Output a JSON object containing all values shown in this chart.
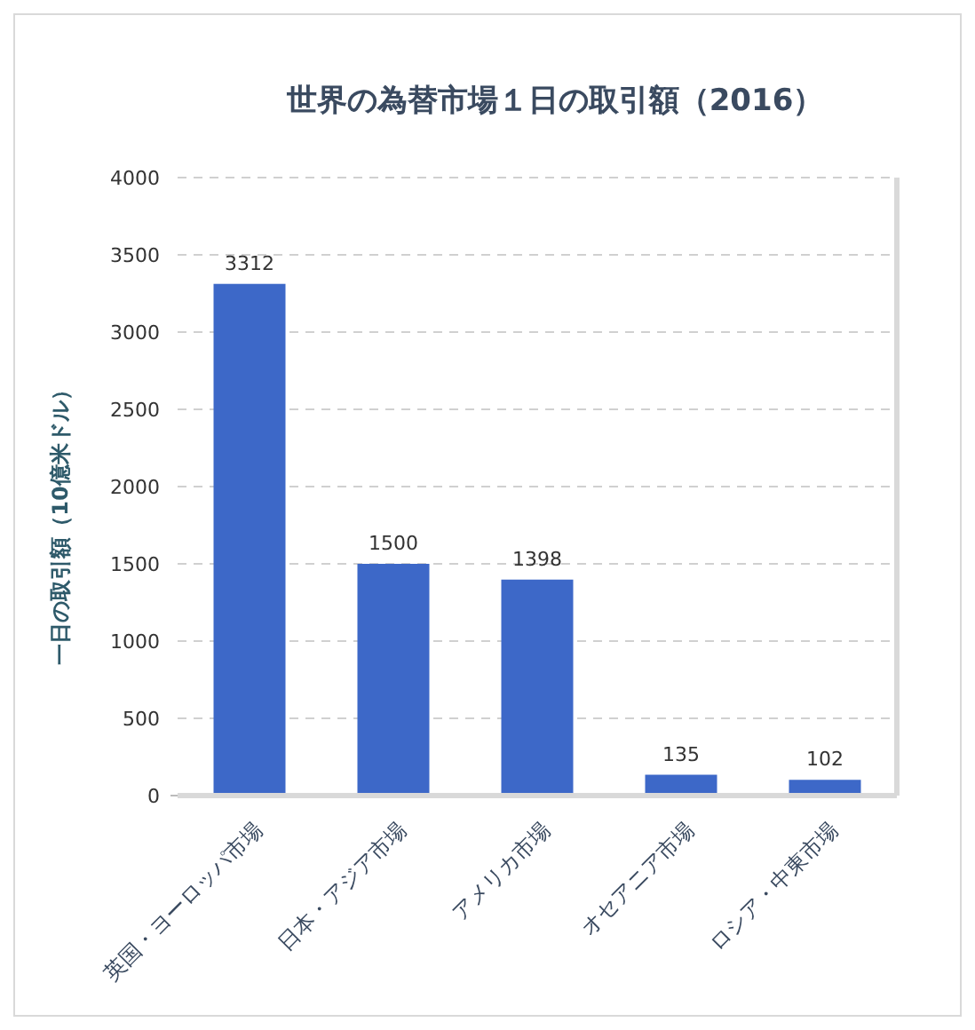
{
  "chart_data": {
    "type": "bar",
    "title": "世界の為替市場１日の取引額（2016）",
    "ylabel": "一日の取引額（10億米ドル）",
    "categories": [
      "英国・ヨーロッパ市場",
      "日本・アジア市場",
      "アメリカ市場",
      "オセアニア市場",
      "ロシア・中東市場"
    ],
    "values": [
      3312,
      1500,
      1398,
      135,
      102
    ],
    "color": "#3d68c8",
    "ylim": [
      0,
      4000
    ],
    "yticks": [
      0,
      500,
      1000,
      1500,
      2000,
      2500,
      3000,
      3500,
      4000
    ],
    "grid": "y",
    "data_labels": true
  }
}
